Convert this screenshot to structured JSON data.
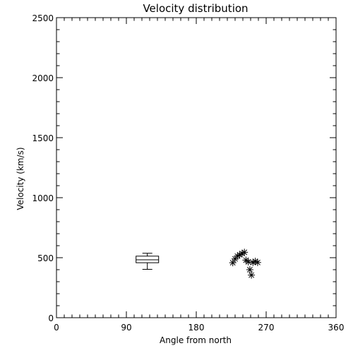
{
  "chart_data": {
    "type": "scatter",
    "title": "Velocity distribution",
    "xlabel": "Angle from north",
    "ylabel": "Velocity (km/s)",
    "xlim": [
      0,
      360
    ],
    "ylim": [
      0,
      2500
    ],
    "xticks": [
      0,
      90,
      180,
      270,
      360
    ],
    "yticks": [
      0,
      500,
      1000,
      1500,
      2000,
      2500
    ],
    "xtick_labels": [
      "0",
      "90",
      "180",
      "270",
      "360"
    ],
    "ytick_labels": [
      "0",
      "500",
      "1000",
      "1500",
      "2000",
      "2500"
    ],
    "x_minor_step": 10,
    "y_minor_step": 100,
    "grid": false,
    "boxplot": {
      "x": 117,
      "whisker_low": 403,
      "q1": 458,
      "median": 482,
      "q3": 513,
      "whisker_high": 537
    },
    "points": [
      {
        "x": 227,
        "y": 458
      },
      {
        "x": 230,
        "y": 490
      },
      {
        "x": 233,
        "y": 513
      },
      {
        "x": 236,
        "y": 524
      },
      {
        "x": 239,
        "y": 535
      },
      {
        "x": 242,
        "y": 545
      },
      {
        "x": 244,
        "y": 480
      },
      {
        "x": 247,
        "y": 465
      },
      {
        "x": 249,
        "y": 400
      },
      {
        "x": 251,
        "y": 355
      },
      {
        "x": 253,
        "y": 460
      },
      {
        "x": 256,
        "y": 470
      },
      {
        "x": 259,
        "y": 460
      }
    ]
  }
}
